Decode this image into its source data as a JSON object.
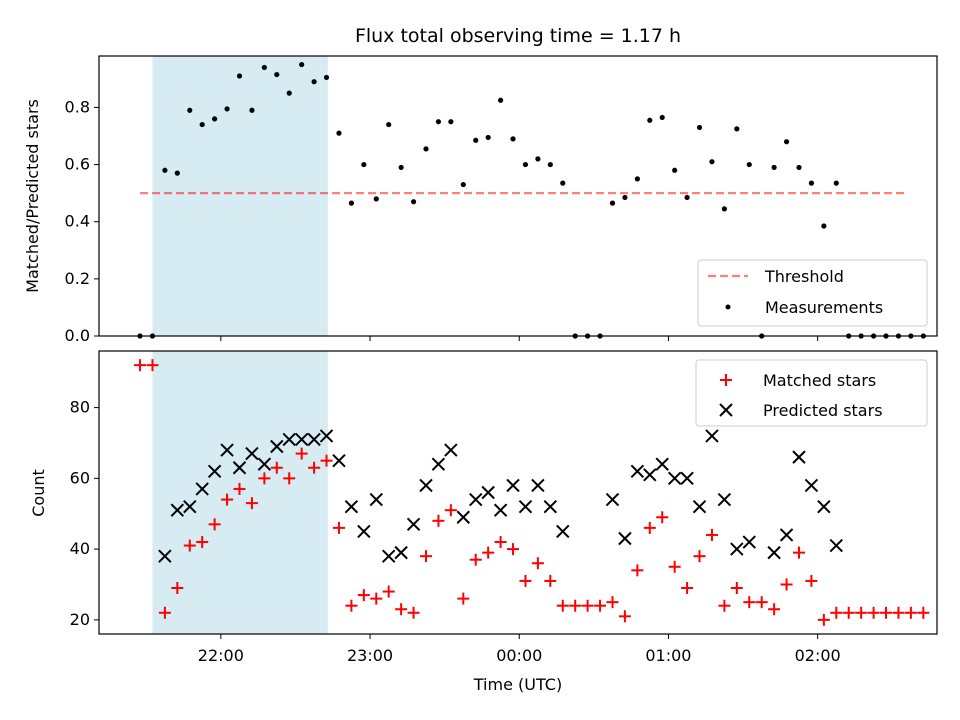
{
  "chart_data": {
    "title": "Flux total observing time = 1.17 h",
    "x_label": "Time (UTC)",
    "x_ticks": [
      "22:00",
      "23:00",
      "00:00",
      "01:00",
      "02:00"
    ],
    "x_tick_hours": [
      22,
      23,
      24,
      25,
      26
    ],
    "x_range_hours": [
      21.1833,
      26.8
    ],
    "shaded_interval_hours": [
      21.5417,
      22.7167
    ],
    "colors": {
      "shade": "#add8e6",
      "threshold": "#ff0000",
      "matched": "#ff0000",
      "predicted": "#000000",
      "measurement": "#000000"
    },
    "top": {
      "type": "scatter",
      "ylabel": "Matched/Predicted stars",
      "ylim": [
        0,
        0.98
      ],
      "yticks": [
        "0.0",
        "0.2",
        "0.4",
        "0.6",
        "0.8"
      ],
      "ytick_values": [
        0,
        0.2,
        0.4,
        0.6,
        0.8
      ],
      "threshold": {
        "name": "Threshold",
        "value": 0.5,
        "x_range_hours": [
          21.4583,
          26.6
        ]
      },
      "measurements_name": "Measurements",
      "legend_position": "lower-right",
      "points": [
        [
          21.4583,
          0.0
        ],
        [
          21.5417,
          0.0
        ],
        [
          21.625,
          0.58
        ],
        [
          21.7083,
          0.57
        ],
        [
          21.7917,
          0.79
        ],
        [
          21.875,
          0.74
        ],
        [
          21.9583,
          0.76
        ],
        [
          22.0417,
          0.795
        ],
        [
          22.125,
          0.91
        ],
        [
          22.2083,
          0.79
        ],
        [
          22.2917,
          0.94
        ],
        [
          22.375,
          0.915
        ],
        [
          22.4583,
          0.85
        ],
        [
          22.5417,
          0.95
        ],
        [
          22.625,
          0.89
        ],
        [
          22.7083,
          0.905
        ],
        [
          22.7917,
          0.71
        ],
        [
          22.875,
          0.465
        ],
        [
          22.9583,
          0.6
        ],
        [
          23.0417,
          0.48
        ],
        [
          23.125,
          0.74
        ],
        [
          23.2083,
          0.59
        ],
        [
          23.2917,
          0.47
        ],
        [
          23.375,
          0.655
        ],
        [
          23.4583,
          0.75
        ],
        [
          23.5417,
          0.75
        ],
        [
          23.625,
          0.53
        ],
        [
          23.7083,
          0.685
        ],
        [
          23.7917,
          0.695
        ],
        [
          23.875,
          0.825
        ],
        [
          23.9583,
          0.69
        ],
        [
          24.0417,
          0.6
        ],
        [
          24.125,
          0.62
        ],
        [
          24.2083,
          0.6
        ],
        [
          24.2917,
          0.535
        ],
        [
          24.375,
          0.0
        ],
        [
          24.4583,
          0.0
        ],
        [
          24.5417,
          0.0
        ],
        [
          24.625,
          0.465
        ],
        [
          24.7083,
          0.485
        ],
        [
          24.7917,
          0.55
        ],
        [
          24.875,
          0.755
        ],
        [
          24.9583,
          0.765
        ],
        [
          25.0417,
          0.58
        ],
        [
          25.125,
          0.485
        ],
        [
          25.2083,
          0.73
        ],
        [
          25.2917,
          0.61
        ],
        [
          25.375,
          0.445
        ],
        [
          25.4583,
          0.725
        ],
        [
          25.5417,
          0.6
        ],
        [
          25.625,
          0.0
        ],
        [
          25.7083,
          0.59
        ],
        [
          25.7917,
          0.68
        ],
        [
          25.875,
          0.59
        ],
        [
          25.9583,
          0.535
        ],
        [
          26.0417,
          0.385
        ],
        [
          26.125,
          0.535
        ],
        [
          26.2083,
          0.0
        ],
        [
          26.2917,
          0.0
        ],
        [
          26.375,
          0.0
        ],
        [
          26.4583,
          0.0
        ],
        [
          26.5417,
          0.0
        ],
        [
          26.625,
          0.0
        ],
        [
          26.7083,
          0.0
        ]
      ]
    },
    "bottom": {
      "type": "scatter",
      "ylabel": "Count",
      "ylim": [
        16,
        96
      ],
      "yticks": [
        "20",
        "40",
        "60",
        "80"
      ],
      "ytick_values": [
        20,
        40,
        60,
        80
      ],
      "legend_position": "upper-right",
      "series": [
        {
          "name": "Matched stars",
          "marker": "plus",
          "points": [
            [
              21.4583,
              92
            ],
            [
              21.5417,
              92
            ],
            [
              21.625,
              22
            ],
            [
              21.7083,
              29
            ],
            [
              21.7917,
              41
            ],
            [
              21.875,
              42
            ],
            [
              21.9583,
              47
            ],
            [
              22.0417,
              54
            ],
            [
              22.125,
              57
            ],
            [
              22.2083,
              53
            ],
            [
              22.2917,
              60
            ],
            [
              22.375,
              63
            ],
            [
              22.4583,
              60
            ],
            [
              22.5417,
              67
            ],
            [
              22.625,
              63
            ],
            [
              22.7083,
              65
            ],
            [
              22.7917,
              46
            ],
            [
              22.875,
              24
            ],
            [
              22.9583,
              27
            ],
            [
              23.0417,
              26
            ],
            [
              23.125,
              28
            ],
            [
              23.2083,
              23
            ],
            [
              23.2917,
              22
            ],
            [
              23.375,
              38
            ],
            [
              23.4583,
              48
            ],
            [
              23.5417,
              51
            ],
            [
              23.625,
              26
            ],
            [
              23.7083,
              37
            ],
            [
              23.7917,
              39
            ],
            [
              23.875,
              42
            ],
            [
              23.9583,
              40
            ],
            [
              24.0417,
              31
            ],
            [
              24.125,
              36
            ],
            [
              24.2083,
              31
            ],
            [
              24.2917,
              24
            ],
            [
              24.375,
              24
            ],
            [
              24.4583,
              24
            ],
            [
              24.5417,
              24
            ],
            [
              24.625,
              25
            ],
            [
              24.7083,
              21
            ],
            [
              24.7917,
              34
            ],
            [
              24.875,
              46
            ],
            [
              24.9583,
              49
            ],
            [
              25.0417,
              35
            ],
            [
              25.125,
              29
            ],
            [
              25.2083,
              38
            ],
            [
              25.2917,
              44
            ],
            [
              25.375,
              24
            ],
            [
              25.4583,
              29
            ],
            [
              25.5417,
              25
            ],
            [
              25.625,
              25
            ],
            [
              25.7083,
              23
            ],
            [
              25.7917,
              30
            ],
            [
              25.875,
              39
            ],
            [
              25.9583,
              31
            ],
            [
              26.0417,
              20
            ],
            [
              26.125,
              22
            ],
            [
              26.2083,
              22
            ],
            [
              26.2917,
              22
            ],
            [
              26.375,
              22
            ],
            [
              26.4583,
              22
            ],
            [
              26.5417,
              22
            ],
            [
              26.625,
              22
            ],
            [
              26.7083,
              22
            ]
          ]
        },
        {
          "name": "Predicted stars",
          "marker": "cross",
          "points": [
            [
              21.625,
              38
            ],
            [
              21.7083,
              51
            ],
            [
              21.7917,
              52
            ],
            [
              21.875,
              57
            ],
            [
              21.9583,
              62
            ],
            [
              22.0417,
              68
            ],
            [
              22.125,
              63
            ],
            [
              22.2083,
              67
            ],
            [
              22.2917,
              64
            ],
            [
              22.375,
              69
            ],
            [
              22.4583,
              71
            ],
            [
              22.5417,
              71
            ],
            [
              22.625,
              71
            ],
            [
              22.7083,
              72
            ],
            [
              22.7917,
              65
            ],
            [
              22.875,
              52
            ],
            [
              22.9583,
              45
            ],
            [
              23.0417,
              54
            ],
            [
              23.125,
              38
            ],
            [
              23.2083,
              39
            ],
            [
              23.2917,
              47
            ],
            [
              23.375,
              58
            ],
            [
              23.4583,
              64
            ],
            [
              23.5417,
              68
            ],
            [
              23.625,
              49
            ],
            [
              23.7083,
              54
            ],
            [
              23.7917,
              56
            ],
            [
              23.875,
              51
            ],
            [
              23.9583,
              58
            ],
            [
              24.0417,
              52
            ],
            [
              24.125,
              58
            ],
            [
              24.2083,
              52
            ],
            [
              24.2917,
              45
            ],
            [
              24.625,
              54
            ],
            [
              24.7083,
              43
            ],
            [
              24.7917,
              62
            ],
            [
              24.875,
              61
            ],
            [
              24.9583,
              64
            ],
            [
              25.0417,
              60
            ],
            [
              25.125,
              60
            ],
            [
              25.2083,
              52
            ],
            [
              25.2917,
              72
            ],
            [
              25.375,
              54
            ],
            [
              25.4583,
              40
            ],
            [
              25.5417,
              42
            ],
            [
              25.7083,
              39
            ],
            [
              25.7917,
              44
            ],
            [
              25.875,
              66
            ],
            [
              25.9583,
              58
            ],
            [
              26.0417,
              52
            ],
            [
              26.125,
              41
            ]
          ]
        }
      ]
    }
  }
}
